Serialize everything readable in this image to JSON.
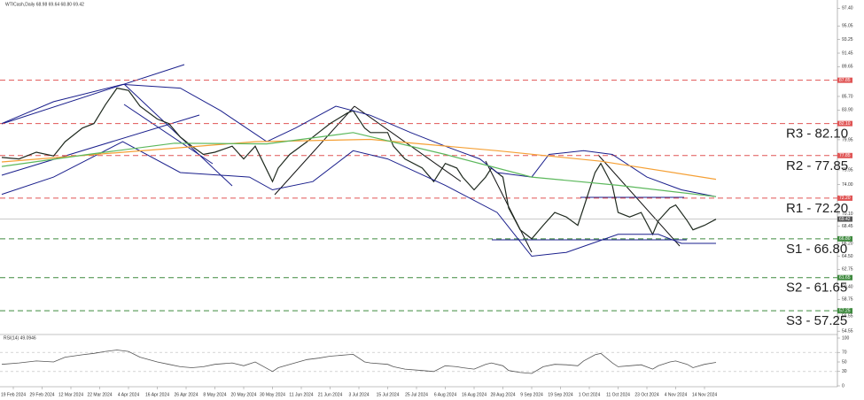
{
  "chart_data": {
    "type": "line",
    "title": "WTICash,Daily 68.98 69.64 68.80 69.42",
    "xlim": [
      0,
      145
    ],
    "ylim": [
      54.1,
      98.5
    ],
    "yticks": [
      {
        "value": 97.4,
        "label": "97.40"
      },
      {
        "value": 95.05,
        "label": "95.05"
      },
      {
        "value": 93.25,
        "label": "93.25"
      },
      {
        "value": 91.45,
        "label": "91.45"
      },
      {
        "value": 89.65,
        "label": "89.65"
      },
      {
        "value": 85.7,
        "label": "85.70"
      },
      {
        "value": 83.9,
        "label": "83.90"
      },
      {
        "value": 79.95,
        "label": "79.95"
      },
      {
        "value": 75.95,
        "label": "75.95"
      },
      {
        "value": 74,
        "label": "74.00"
      },
      {
        "value": 70.1,
        "label": "70.10"
      },
      {
        "value": 68.45,
        "label": "68.45"
      },
      {
        "value": 66.2,
        "label": "66.20"
      },
      {
        "value": 64.5,
        "label": "64.50"
      },
      {
        "value": 62.75,
        "label": "62.75"
      },
      {
        "value": 60.4,
        "label": "60.40"
      },
      {
        "value": 58.75,
        "label": "58.75"
      },
      {
        "value": 56.55,
        "label": "56.55"
      },
      {
        "value": 54.55,
        "label": "54.55"
      }
    ],
    "xticks": [
      {
        "value": 2,
        "label": "19 Feb 2024"
      },
      {
        "value": 7,
        "label": "29 Feb 2024"
      },
      {
        "value": 12,
        "label": "12 Mar 2024"
      },
      {
        "value": 17,
        "label": "22 Mar 2024"
      },
      {
        "value": 22,
        "label": "4 Apr 2024"
      },
      {
        "value": 27,
        "label": "16 Apr 2024"
      },
      {
        "value": 32,
        "label": "26 Apr 2024"
      },
      {
        "value": 37,
        "label": "8 May 2024"
      },
      {
        "value": 42,
        "label": "20 May 2024"
      },
      {
        "value": 47,
        "label": "30 May 2024"
      },
      {
        "value": 52,
        "label": "11 Jun 2024"
      },
      {
        "value": 57,
        "label": "21 Jun 2024"
      },
      {
        "value": 62,
        "label": "3 Jul 2024"
      },
      {
        "value": 67,
        "label": "15 Jul 2024"
      },
      {
        "value": 72,
        "label": "25 Jul 2024"
      },
      {
        "value": 77,
        "label": "6 Aug 2024"
      },
      {
        "value": 82,
        "label": "16 Aug 2024"
      },
      {
        "value": 87,
        "label": "28 Aug 2024"
      },
      {
        "value": 92,
        "label": "9 Sep 2024"
      },
      {
        "value": 97,
        "label": "19 Sep 2024"
      },
      {
        "value": 102,
        "label": "1 Oct 2024"
      },
      {
        "value": 107,
        "label": "11 Oct 2024"
      },
      {
        "value": 112,
        "label": "23 Oct 2024"
      },
      {
        "value": 117,
        "label": "4 Nov 2024"
      },
      {
        "value": 122,
        "label": "14 Nov 2024"
      }
    ],
    "series": [
      {
        "color": "#1f2a1f",
        "width": 1.2,
        "x": [
          0,
          3,
          6,
          9,
          11,
          14,
          16,
          18,
          20,
          22,
          24,
          27,
          29,
          31,
          33,
          35,
          37,
          40,
          42,
          44,
          47,
          48,
          50,
          53,
          55,
          57,
          60,
          61,
          63,
          64,
          67,
          68,
          70,
          73,
          75,
          77,
          79,
          80,
          82,
          84,
          85,
          87,
          88,
          90,
          92,
          94,
          96,
          98,
          100,
          101,
          103,
          104,
          106,
          107,
          109,
          111,
          113,
          114,
          116,
          117,
          119,
          120,
          122,
          124
        ],
        "values": [
          77.6,
          77.4,
          78.3,
          77.8,
          79.7,
          81.5,
          82.1,
          84.6,
          86.8,
          86.5,
          84.4,
          82.7,
          82.1,
          80.3,
          79.1,
          78.0,
          78.3,
          79.1,
          77.4,
          79.1,
          74.4,
          76.2,
          78.0,
          79.7,
          80.9,
          82.1,
          83.5,
          83.8,
          81.5,
          80.9,
          80.9,
          79.1,
          77.4,
          76.2,
          74.4,
          76.8,
          76.2,
          75.0,
          73.3,
          75.0,
          76.2,
          75.0,
          70.9,
          68.0,
          66.8,
          68.6,
          70.3,
          69.7,
          68.6,
          70.9,
          75.6,
          76.8,
          73.9,
          70.3,
          69.7,
          70.3,
          67.4,
          69.2,
          70.9,
          71.3,
          69.2,
          68.0,
          68.6,
          69.4
        ]
      },
      {
        "color": "#1a1f8c",
        "width": 1,
        "x": [
          0,
          9,
          21,
          31,
          38,
          46,
          51,
          58,
          64,
          71,
          77,
          83,
          86,
          92,
          95,
          101,
          106,
          112,
          118,
          124
        ],
        "values": [
          82.1,
          85.0,
          87.3,
          86.8,
          83.8,
          79.7,
          81.5,
          84.4,
          83.2,
          80.9,
          79.1,
          77.4,
          75.6,
          75.0,
          78.0,
          78.5,
          78.0,
          75.0,
          73.3,
          72.4
        ]
      },
      {
        "color": "#1a1f8c",
        "width": 1,
        "x": [
          0,
          9,
          21,
          31,
          43,
          47,
          54,
          61,
          67,
          77,
          86,
          92,
          98,
          107,
          114,
          118,
          124
        ],
        "values": [
          72.7,
          75.0,
          79.7,
          75.6,
          75.0,
          73.3,
          74.4,
          78.5,
          77.4,
          73.9,
          70.3,
          64.5,
          65.0,
          67.4,
          67.4,
          66.2,
          66.2
        ]
      },
      {
        "color": "#f5a035",
        "width": 1.2,
        "x": [
          0,
          44,
          64,
          86,
          104,
          124
        ],
        "values": [
          77.0,
          79.7,
          80.0,
          78.5,
          77.1,
          74.7
        ]
      },
      {
        "color": "#5cb85c",
        "width": 1.2,
        "x": [
          0,
          15,
          30,
          46,
          61,
          77,
          92,
          107,
          124
        ],
        "values": [
          76.4,
          78.0,
          79.5,
          79.4,
          80.9,
          78.0,
          75.0,
          73.9,
          72.4
        ]
      }
    ],
    "levels": [
      {
        "value": 87.85,
        "tag": "87.85",
        "color": "#e05555"
      },
      {
        "value": 82.1,
        "tag": "82.10",
        "label": "R3 - 82.10",
        "color": "#e05555"
      },
      {
        "value": 77.85,
        "tag": "77.85",
        "label": "R2 - 77.85",
        "color": "#e05555"
      },
      {
        "value": 72.2,
        "tag": "72.20",
        "label": "R1 - 72.20",
        "color": "#e05555"
      },
      {
        "value": 66.8,
        "tag": "66.80",
        "label": "S1 - 66.80",
        "color": "#3f8a3f"
      },
      {
        "value": 61.65,
        "tag": "61.65",
        "label": "S2 - 61.65",
        "color": "#3f8a3f"
      },
      {
        "value": 57.25,
        "tag": "57.25",
        "label": "S3 - 57.25",
        "color": "#3f8a3f"
      }
    ],
    "last_price": {
      "value": 69.42,
      "tag": "69.42"
    },
    "rsi": {
      "title": "RSI(14) 49.0946",
      "ylim": [
        0,
        100
      ],
      "yticks": [
        100,
        70,
        50,
        30,
        0
      ],
      "levels": [
        70,
        30
      ],
      "color": "#555555",
      "x": [
        0,
        3,
        6,
        9,
        11,
        14,
        16,
        18,
        20,
        22,
        24,
        27,
        29,
        31,
        33,
        35,
        37,
        40,
        42,
        44,
        47,
        48,
        50,
        53,
        55,
        57,
        60,
        61,
        63,
        64,
        67,
        68,
        70,
        73,
        75,
        77,
        79,
        80,
        82,
        84,
        85,
        87,
        88,
        90,
        92,
        94,
        96,
        98,
        100,
        101,
        103,
        104,
        106,
        107,
        109,
        111,
        113,
        114,
        116,
        117,
        119,
        120,
        122,
        124
      ],
      "values": [
        45,
        48,
        52,
        50,
        60,
        65,
        68,
        72,
        75,
        72,
        60,
        50,
        45,
        40,
        38,
        40,
        45,
        48,
        42,
        50,
        30,
        38,
        45,
        55,
        58,
        62,
        65,
        66,
        50,
        48,
        45,
        40,
        35,
        32,
        30,
        42,
        40,
        38,
        35,
        45,
        48,
        42,
        32,
        28,
        26,
        40,
        45,
        44,
        42,
        52,
        65,
        68,
        48,
        40,
        42,
        44,
        35,
        42,
        50,
        52,
        45,
        38,
        45,
        49
      ]
    }
  }
}
